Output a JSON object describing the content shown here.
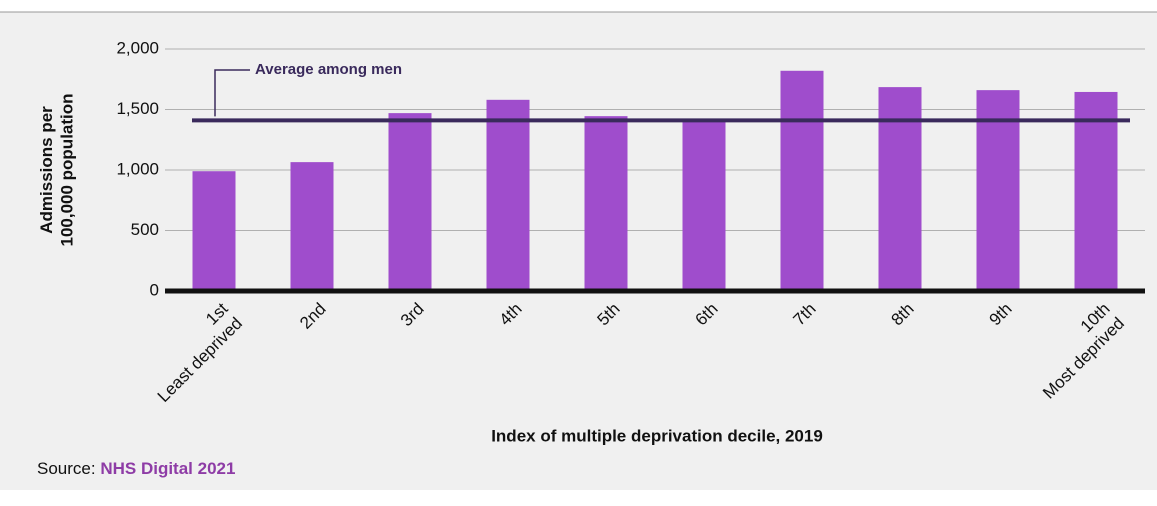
{
  "chart_data": {
    "type": "bar",
    "categories": [
      [
        "1st",
        "Least deprived"
      ],
      [
        "2nd"
      ],
      [
        "3rd"
      ],
      [
        "4th"
      ],
      [
        "5th"
      ],
      [
        "6th"
      ],
      [
        "7th"
      ],
      [
        "8th"
      ],
      [
        "9th"
      ],
      [
        "10th",
        "Most deprived"
      ]
    ],
    "values": [
      990,
      1065,
      1470,
      1580,
      1445,
      1405,
      1820,
      1685,
      1660,
      1645
    ],
    "color": "#9f4dcc",
    "ylim": [
      0,
      2000
    ],
    "yticks": [
      0,
      500,
      {
        "value": 1000,
        "label": "1,000"
      },
      {
        "value": 1500,
        "label": "1,500"
      },
      {
        "value": 2000,
        "label": "2,000"
      }
    ],
    "grid": true,
    "y_label": [
      "Admissions per",
      "100,000 population"
    ],
    "x_label": "Index of multiple deprivation decile, 2019",
    "reference_line": {
      "label": "Average among men",
      "value": 1410,
      "color": "#3a2a5c"
    },
    "source": {
      "label": "Source:",
      "text": "NHS Digital 2021"
    }
  }
}
